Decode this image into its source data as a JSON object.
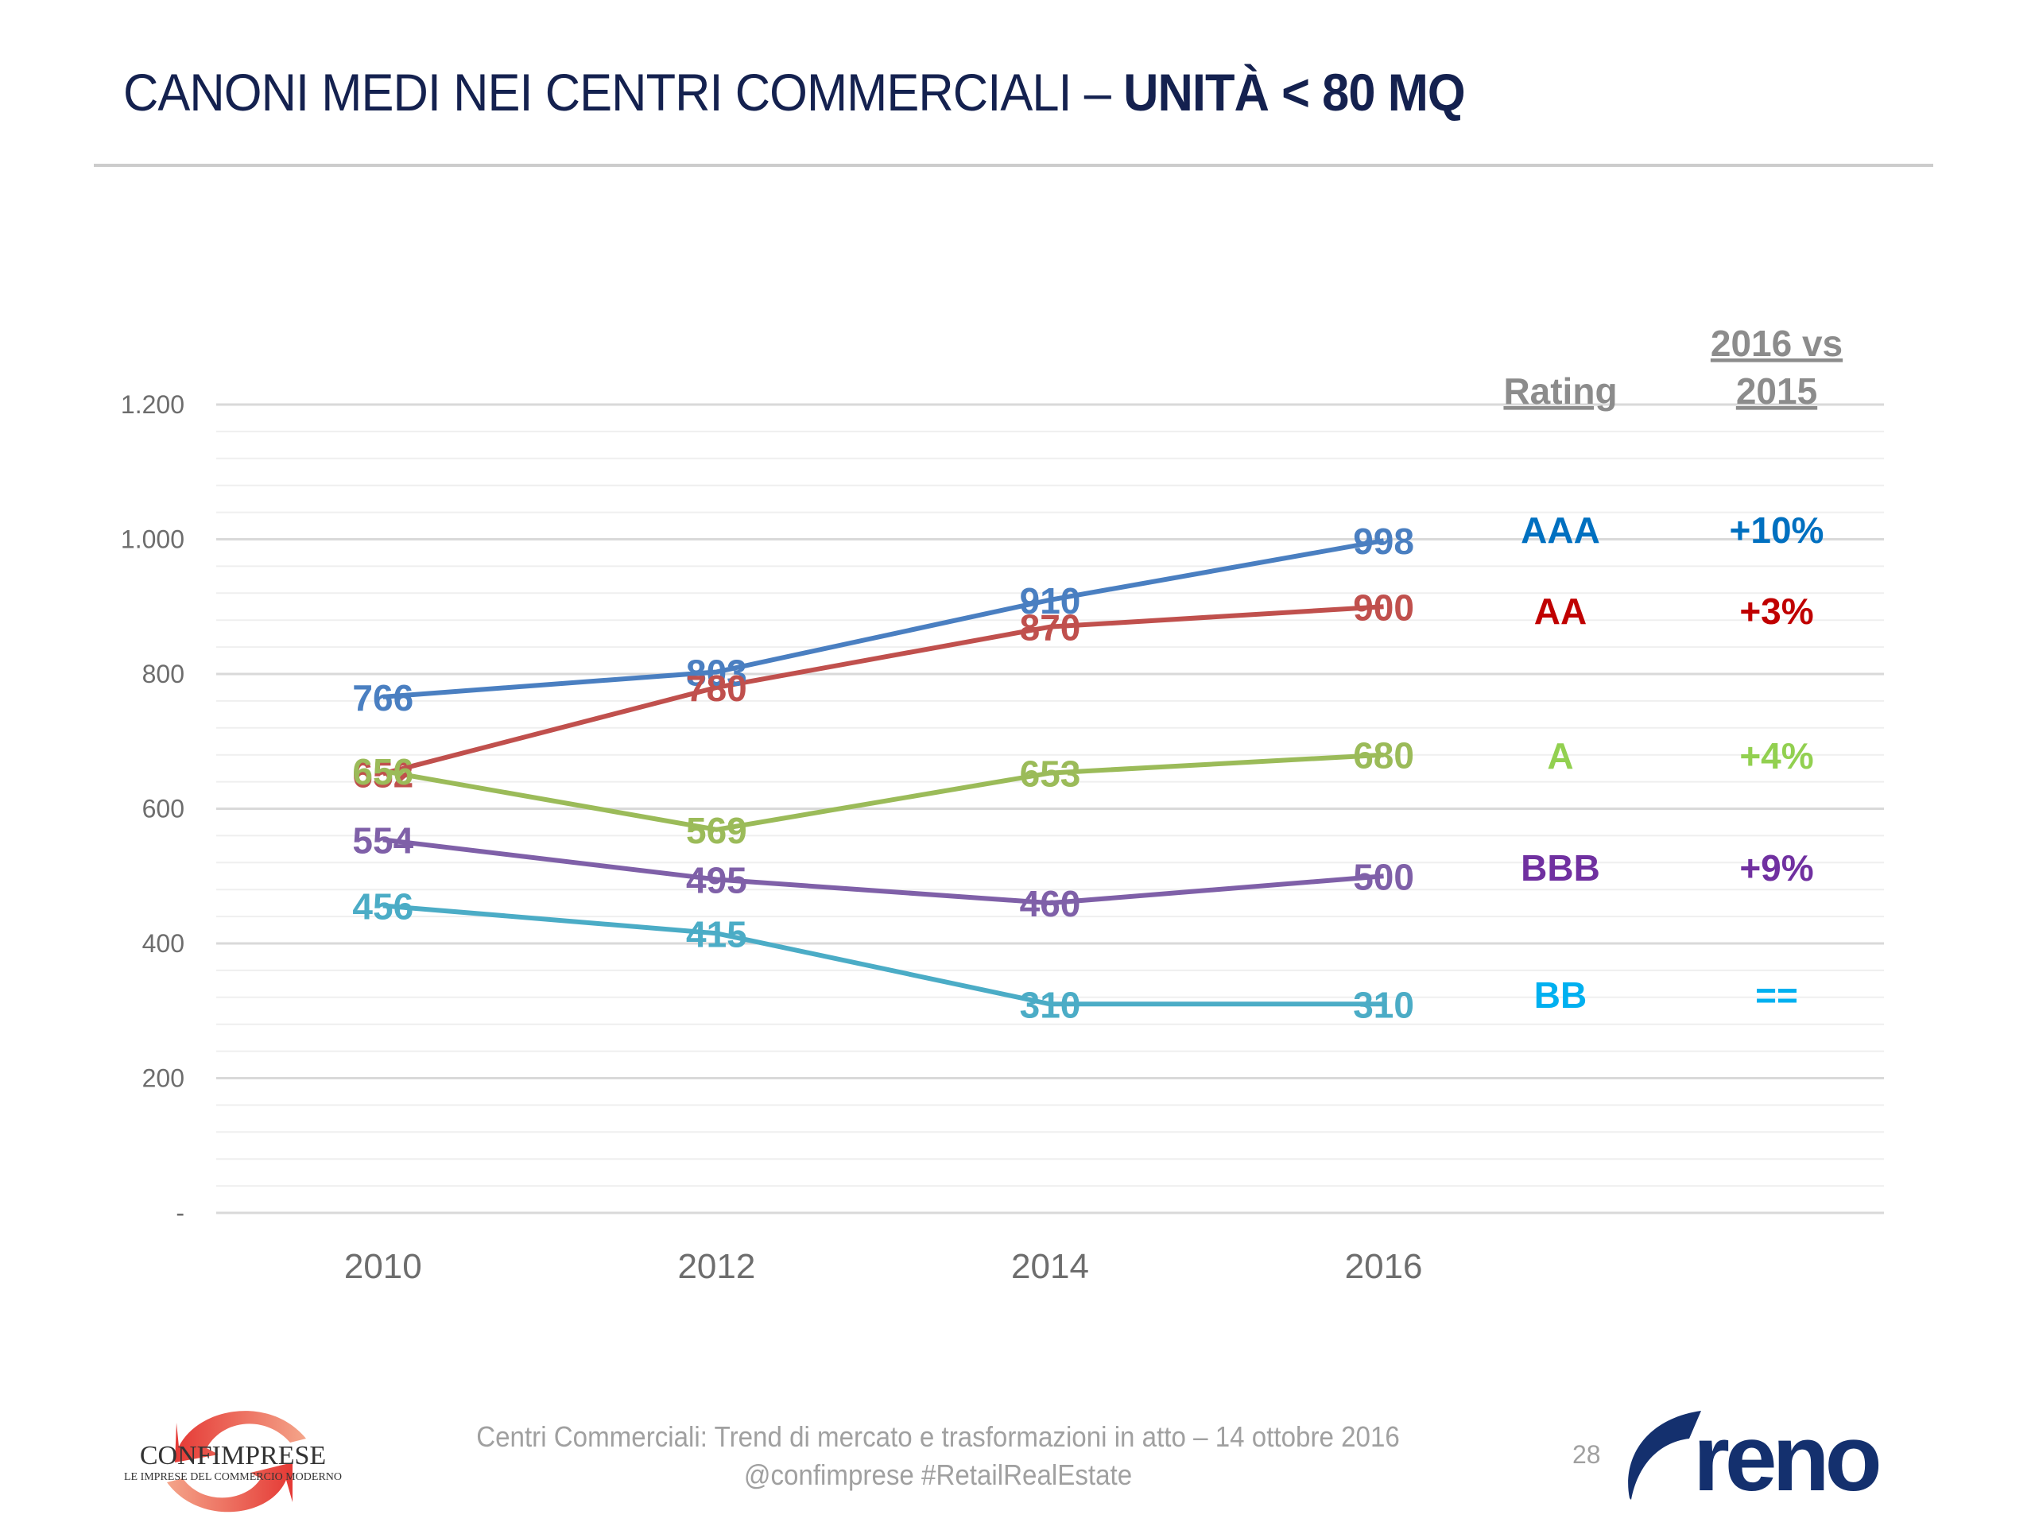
{
  "header": {
    "title_regular": "CANONI MEDI NEI CENTRI COMMERCIALI – ",
    "title_bold": "UNITÀ < 80 MQ"
  },
  "chart_data": {
    "type": "line",
    "title": "CANONI MEDI NEI CENTRI COMMERCIALI – UNITÀ < 80 MQ",
    "xlabel": "",
    "ylabel": "",
    "categories": [
      "2010",
      "2012",
      "2014",
      "2016"
    ],
    "ylim": [
      0,
      1200
    ],
    "yticks": [
      0,
      200,
      400,
      600,
      800,
      1000,
      1200
    ],
    "ytick_labels": [
      "-",
      "200",
      "400",
      "600",
      "800",
      "1.000",
      "1.200"
    ],
    "minor_grid_step": 40,
    "grid": true,
    "legend": "none (table at right)",
    "series": [
      {
        "name": "AAA",
        "color": "#4a7fc1",
        "values": [
          766,
          803,
          910,
          998
        ],
        "labels": [
          "766",
          "803",
          "910",
          "998"
        ]
      },
      {
        "name": "AA",
        "color": "#c0504d",
        "values": [
          652,
          780,
          870,
          900
        ],
        "labels": [
          "652",
          "780",
          "870",
          "900"
        ]
      },
      {
        "name": "A",
        "color": "#9bbb59",
        "values": [
          656,
          569,
          653,
          680
        ],
        "labels": [
          "656",
          "569",
          "653",
          "680"
        ]
      },
      {
        "name": "BBB",
        "color": "#7f60a8",
        "values": [
          554,
          495,
          460,
          500
        ],
        "labels": [
          "554",
          "495",
          "460",
          "500"
        ]
      },
      {
        "name": "BB",
        "color": "#4bacc6",
        "values": [
          456,
          415,
          310,
          310
        ],
        "labels": [
          "456",
          "415",
          "310",
          "310"
        ]
      }
    ],
    "side_table": {
      "headers": [
        "Rating",
        "2016 vs 2015"
      ],
      "header_color": "#8c8c8c",
      "rows": [
        {
          "rating": "AAA",
          "change": "+10%",
          "color": "#0070c0"
        },
        {
          "rating": "AA",
          "change": "+3%",
          "color": "#c00000"
        },
        {
          "rating": "A",
          "change": "+4%",
          "color": "#92d050"
        },
        {
          "rating": "BBB",
          "change": "+9%",
          "color": "#7030a0"
        },
        {
          "rating": "BB",
          "change": "==",
          "color": "#00b0f0"
        }
      ]
    }
  },
  "footer": {
    "line1": "Centri Commerciali: Trend di mercato e trasformazioni in atto – 14 ottobre 2016",
    "line2": "@confimprese #RetailRealEstate",
    "page_number": "28",
    "logo_left_name": "CONFIMPRESE",
    "logo_left_tagline": "LE IMPRESE DEL COMMERCIO MODERNO",
    "logo_right_name": "reno"
  }
}
